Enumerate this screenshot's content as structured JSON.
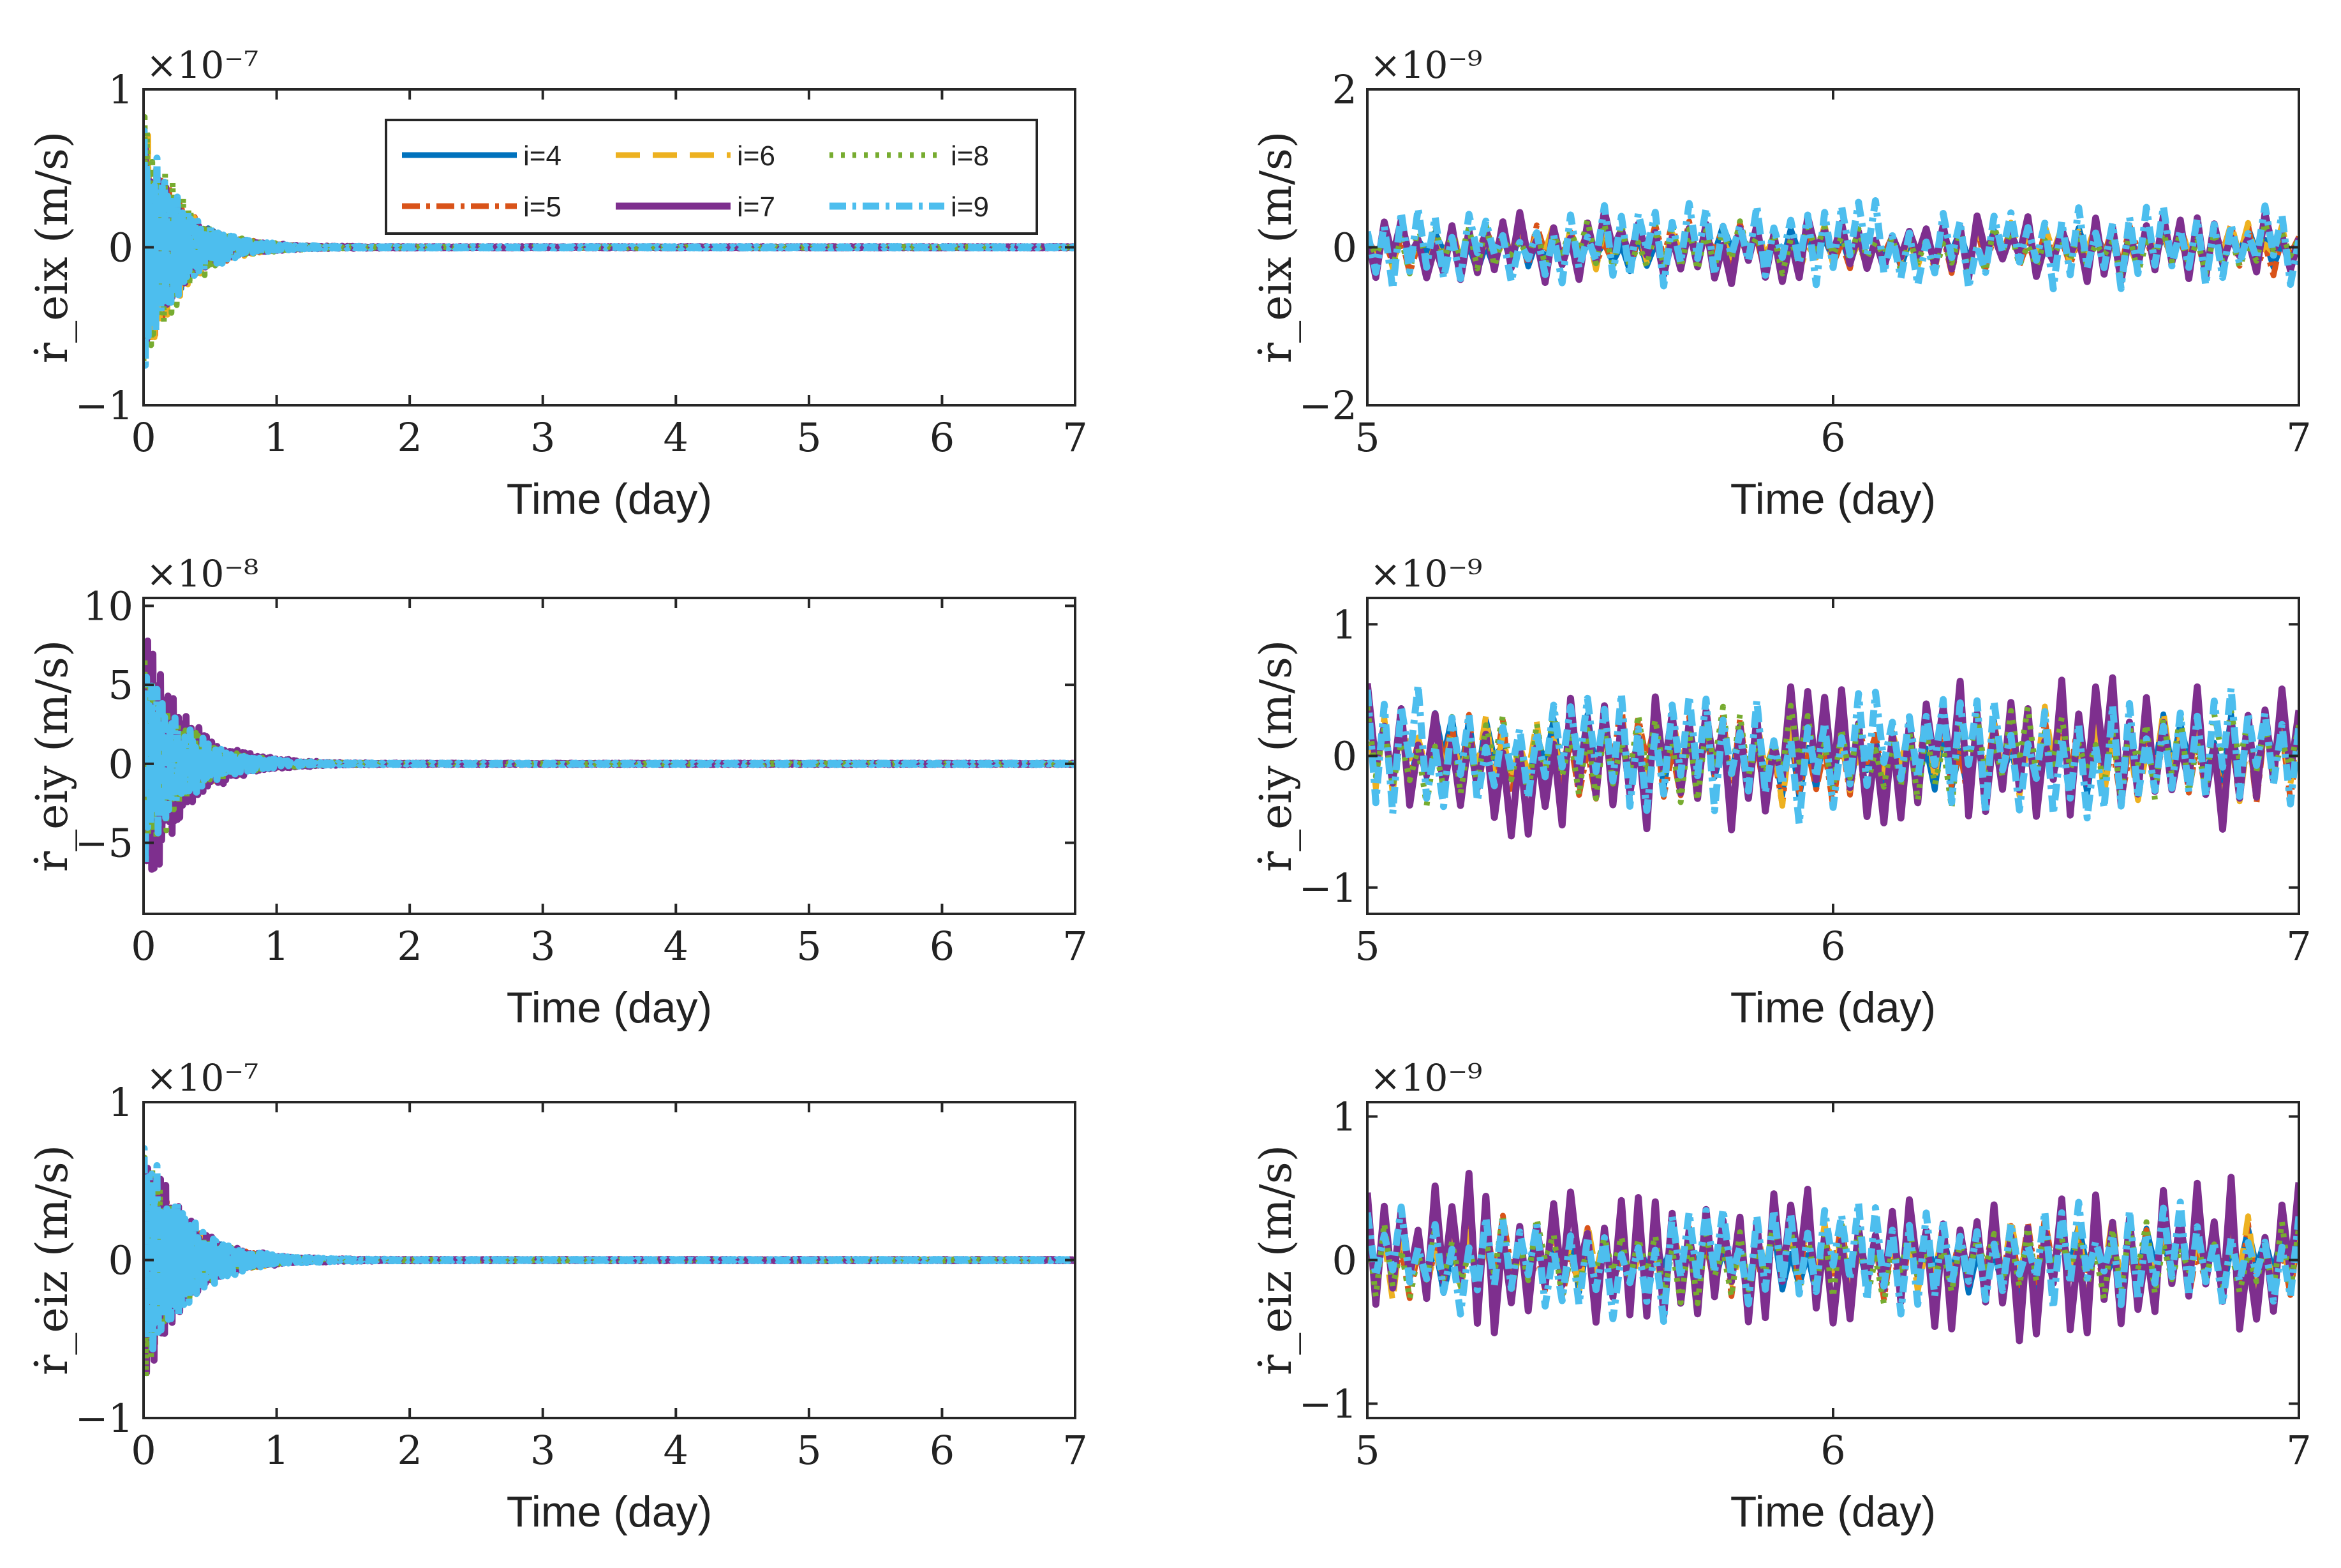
{
  "colors": {
    "i4": "#0072bd",
    "i5": "#d95319",
    "i6": "#edb120",
    "i7": "#7e2f8e",
    "i8": "#77ac30",
    "i9": "#4dbeee"
  },
  "chart_data": [
    {
      "type": "line",
      "id": "p1",
      "xlabel": "Time (day)",
      "ylabel": "ṙ_eix (m/s)",
      "exponent": "×10⁻⁷",
      "xlim": [
        0,
        7
      ],
      "ylim": [
        -1,
        1
      ],
      "xticks": [
        "0",
        "1",
        "2",
        "3",
        "4",
        "5",
        "6",
        "7"
      ],
      "yticks": [
        "−1",
        "0",
        "1"
      ],
      "legend": [
        "i=4",
        "i=5",
        "i=6",
        "i=7",
        "i=8",
        "i=9"
      ],
      "series": [
        {
          "name": "i=4",
          "amp": 0.75,
          "decay": 0.28
        },
        {
          "name": "i=5",
          "amp": 0.8,
          "decay": 0.28
        },
        {
          "name": "i=6",
          "amp": 0.85,
          "decay": 0.28
        },
        {
          "name": "i=7",
          "amp": 0.7,
          "decay": 0.28
        },
        {
          "name": "i=8",
          "amp": 0.95,
          "decay": 0.28
        },
        {
          "name": "i=9",
          "amp": 0.85,
          "decay": 0.28
        }
      ]
    },
    {
      "type": "line",
      "id": "p2",
      "xlabel": "Time (day)",
      "ylabel": "ṙ_eix (m/s)",
      "exponent": "×10⁻⁹",
      "xlim": [
        5,
        7
      ],
      "ylim": [
        -2,
        2
      ],
      "xticks": [
        "5",
        "6",
        "7"
      ],
      "yticks": [
        "−2",
        "0",
        "2"
      ],
      "series": [
        {
          "name": "i=4",
          "amp": 0.45
        },
        {
          "name": "i=5",
          "amp": 0.55
        },
        {
          "name": "i=6",
          "amp": 0.5
        },
        {
          "name": "i=7",
          "amp": 0.75
        },
        {
          "name": "i=8",
          "amp": 0.55
        },
        {
          "name": "i=9",
          "amp": 0.9
        }
      ]
    },
    {
      "type": "line",
      "id": "p3",
      "xlabel": "Time (day)",
      "ylabel": "ṙ_eiy (m/s)",
      "exponent": "×10⁻⁸",
      "xlim": [
        0,
        7
      ],
      "ylim": [
        -9.5,
        10.5
      ],
      "xticks": [
        "0",
        "1",
        "2",
        "3",
        "4",
        "5",
        "6",
        "7"
      ],
      "yticks": [
        "−5",
        "0",
        "5",
        "10"
      ],
      "series": [
        {
          "name": "i=4",
          "amp": 6.5,
          "decay": 0.3
        },
        {
          "name": "i=5",
          "amp": 7,
          "decay": 0.3
        },
        {
          "name": "i=6",
          "amp": 7.5,
          "decay": 0.3
        },
        {
          "name": "i=7",
          "amp": 9.5,
          "decay": 0.3
        },
        {
          "name": "i=8",
          "amp": 8,
          "decay": 0.3
        },
        {
          "name": "i=9",
          "amp": 7,
          "decay": 0.3
        }
      ]
    },
    {
      "type": "line",
      "id": "p4",
      "xlabel": "Time (day)",
      "ylabel": "ṙ_eiy (m/s)",
      "exponent": "×10⁻⁹",
      "xlim": [
        5,
        7
      ],
      "ylim": [
        -1.2,
        1.2
      ],
      "xticks": [
        "5",
        "6",
        "7"
      ],
      "yticks": [
        "−1",
        "0",
        "1"
      ],
      "series": [
        {
          "name": "i=4",
          "amp": 0.55
        },
        {
          "name": "i=5",
          "amp": 0.6
        },
        {
          "name": "i=6",
          "amp": 0.6
        },
        {
          "name": "i=7",
          "amp": 0.9
        },
        {
          "name": "i=8",
          "amp": 0.6
        },
        {
          "name": "i=9",
          "amp": 0.8
        }
      ]
    },
    {
      "type": "line",
      "id": "p5",
      "xlabel": "Time (day)",
      "ylabel": "ṙ_eiz (m/s)",
      "exponent": "×10⁻⁷",
      "xlim": [
        0,
        7
      ],
      "ylim": [
        -1,
        1
      ],
      "xticks": [
        "0",
        "1",
        "2",
        "3",
        "4",
        "5",
        "6",
        "7"
      ],
      "yticks": [
        "−1",
        "0",
        "1"
      ],
      "series": [
        {
          "name": "i=4",
          "amp": 0.7,
          "decay": 0.3
        },
        {
          "name": "i=5",
          "amp": 0.75,
          "decay": 0.3
        },
        {
          "name": "i=6",
          "amp": 0.75,
          "decay": 0.3
        },
        {
          "name": "i=7",
          "amp": 0.85,
          "decay": 0.3
        },
        {
          "name": "i=8",
          "amp": 0.8,
          "decay": 0.3
        },
        {
          "name": "i=9",
          "amp": 0.9,
          "decay": 0.3
        }
      ]
    },
    {
      "type": "line",
      "id": "p6",
      "xlabel": "Time (day)",
      "ylabel": "ṙ_eiz (m/s)",
      "exponent": "×10⁻⁹",
      "xlim": [
        5,
        7
      ],
      "ylim": [
        -1.1,
        1.1
      ],
      "xticks": [
        "5",
        "6",
        "7"
      ],
      "yticks": [
        "−1",
        "0",
        "1"
      ],
      "series": [
        {
          "name": "i=4",
          "amp": 0.4
        },
        {
          "name": "i=5",
          "amp": 0.5
        },
        {
          "name": "i=6",
          "amp": 0.5
        },
        {
          "name": "i=7",
          "amp": 0.95
        },
        {
          "name": "i=8",
          "amp": 0.5
        },
        {
          "name": "i=9",
          "amp": 0.65
        }
      ]
    }
  ]
}
